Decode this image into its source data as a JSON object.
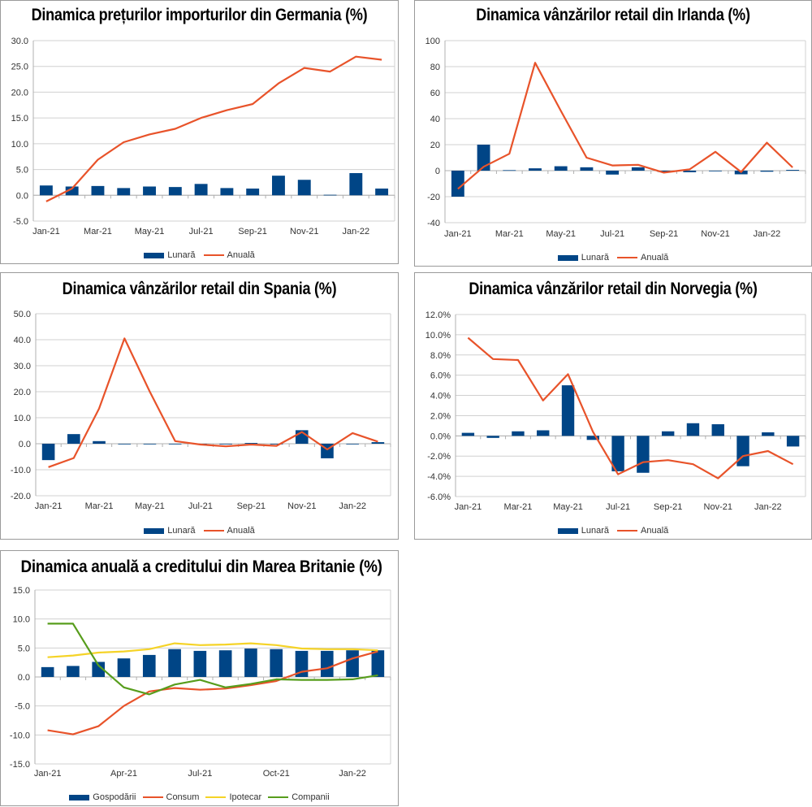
{
  "colors": {
    "bar": "#004586",
    "anuala": "#e8532a",
    "consum": "#e8532a",
    "ipotecar": "#f5d327",
    "companii": "#579d1c",
    "grid": "#d0d0d0",
    "axis": "#b0b0b0"
  },
  "chart_data": [
    {
      "id": "germania",
      "type": "bar+line",
      "title": "Dinamica prețurilor importurilor din Germania (%)",
      "categories": [
        "Jan-21",
        "Feb-21",
        "Mar-21",
        "Apr-21",
        "May-21",
        "Jun-21",
        "Jul-21",
        "Aug-21",
        "Sep-21",
        "Oct-21",
        "Nov-21",
        "Dec-21",
        "Jan-22",
        "Feb-22"
      ],
      "x_tick_labels": [
        "Jan-21",
        "Mar-21",
        "May-21",
        "Jul-21",
        "Sep-21",
        "Nov-21",
        "Jan-22"
      ],
      "ylim": [
        -5,
        30
      ],
      "yticks": [
        -5,
        0,
        5,
        10,
        15,
        20,
        25,
        30
      ],
      "ytick_labels": [
        "-5.0",
        "0.0",
        "5.0",
        "10.0",
        "15.0",
        "20.0",
        "25.0",
        "30.0"
      ],
      "grid": true,
      "legend": "bottom",
      "series": [
        {
          "name": "Lunară",
          "kind": "bar",
          "color_key": "bar",
          "values": [
            1.9,
            1.7,
            1.8,
            1.4,
            1.7,
            1.6,
            2.2,
            1.4,
            1.3,
            3.8,
            3.0,
            0.1,
            4.3,
            1.3
          ]
        },
        {
          "name": "Anuală",
          "kind": "line",
          "color_key": "anuala",
          "values": [
            -1.2,
            1.3,
            6.9,
            10.3,
            11.8,
            12.9,
            15.0,
            16.5,
            17.7,
            21.7,
            24.7,
            24.0,
            26.9,
            26.3
          ]
        }
      ]
    },
    {
      "id": "irlanda",
      "type": "bar+line",
      "title": "Dinamica vânzărilor retail din Irlanda (%)",
      "categories": [
        "Jan-21",
        "Feb-21",
        "Mar-21",
        "Apr-21",
        "May-21",
        "Jun-21",
        "Jul-21",
        "Aug-21",
        "Sep-21",
        "Oct-21",
        "Nov-21",
        "Dec-21",
        "Jan-22",
        "Feb-22"
      ],
      "x_tick_labels": [
        "Jan-21",
        "Mar-21",
        "May-21",
        "Jul-21",
        "Sep-21",
        "Nov-21",
        "Jan-22"
      ],
      "ylim": [
        -40,
        100
      ],
      "yticks": [
        -40,
        -20,
        0,
        20,
        40,
        60,
        80,
        100
      ],
      "ytick_labels": [
        "-40",
        "-20",
        "0",
        "20",
        "40",
        "60",
        "80",
        "100"
      ],
      "grid": true,
      "legend": "bottom",
      "series": [
        {
          "name": "Lunară",
          "kind": "bar",
          "color_key": "bar",
          "values": [
            -20.0,
            20.0,
            0.4,
            1.8,
            3.4,
            2.6,
            -3.0,
            2.6,
            -1.0,
            -1.2,
            0.0,
            -2.8,
            -0.8,
            0.6
          ]
        },
        {
          "name": "Anuală",
          "kind": "line",
          "color_key": "anuala",
          "values": [
            -14.0,
            3.0,
            13.0,
            83.0,
            46.0,
            10.0,
            4.0,
            4.5,
            -1.5,
            1.0,
            14.5,
            -1.0,
            21.5,
            2.5
          ]
        }
      ]
    },
    {
      "id": "spania",
      "type": "bar+line",
      "title": "Dinamica vânzărilor retail din Spania (%)",
      "categories": [
        "Jan-21",
        "Feb-21",
        "Mar-21",
        "Apr-21",
        "May-21",
        "Jun-21",
        "Jul-21",
        "Aug-21",
        "Sep-21",
        "Oct-21",
        "Nov-21",
        "Dec-21",
        "Jan-22",
        "Feb-22"
      ],
      "x_tick_labels": [
        "Jan-21",
        "Mar-21",
        "May-21",
        "Jul-21",
        "Sep-21",
        "Nov-21",
        "Jan-22"
      ],
      "ylim": [
        -20,
        50
      ],
      "yticks": [
        -20,
        -10,
        0,
        10,
        20,
        30,
        40,
        50
      ],
      "ytick_labels": [
        "-20.0",
        "-10.0",
        "0.0",
        "10.0",
        "20.0",
        "30.0",
        "40.0",
        "50.0"
      ],
      "grid": true,
      "legend": "bottom",
      "series": [
        {
          "name": "Lunară",
          "kind": "bar",
          "color_key": "bar",
          "values": [
            -6.3,
            3.7,
            1.0,
            -0.2,
            -0.1,
            0.0,
            0.0,
            0.0,
            0.3,
            0.0,
            5.2,
            -5.6,
            -0.2,
            0.6
          ]
        },
        {
          "name": "Anuală",
          "kind": "line",
          "color_key": "anuala",
          "values": [
            -9.0,
            -5.5,
            13.5,
            40.5,
            20.0,
            1.0,
            -0.3,
            -1.0,
            -0.3,
            -0.8,
            4.5,
            -2.2,
            4.1,
            0.8
          ]
        }
      ]
    },
    {
      "id": "norvegia",
      "type": "bar+line",
      "title": "Dinamica vânzărilor retail din Norvegia (%)",
      "categories": [
        "Jan-21",
        "Feb-21",
        "Mar-21",
        "Apr-21",
        "May-21",
        "Jun-21",
        "Jul-21",
        "Aug-21",
        "Sep-21",
        "Oct-21",
        "Nov-21",
        "Dec-21",
        "Jan-22",
        "Feb-22"
      ],
      "x_tick_labels": [
        "Jan-21",
        "Mar-21",
        "May-21",
        "Jul-21",
        "Sep-21",
        "Nov-21",
        "Jan-22"
      ],
      "ylim": [
        -6,
        12
      ],
      "yticks": [
        -6,
        -4,
        -2,
        0,
        2,
        4,
        6,
        8,
        10,
        12
      ],
      "ytick_labels": [
        "-6.0%",
        "-4.0%",
        "-2.0%",
        "0.0%",
        "2.0%",
        "4.0%",
        "6.0%",
        "8.0%",
        "10.0%",
        "12.0%"
      ],
      "grid": true,
      "legend": "bottom",
      "series": [
        {
          "name": "Lunară",
          "kind": "bar",
          "color_key": "bar",
          "values": [
            0.3,
            -0.2,
            0.45,
            0.55,
            5.0,
            -0.4,
            -3.5,
            -3.65,
            0.45,
            1.25,
            1.15,
            -3.0,
            0.35,
            -1.05
          ]
        },
        {
          "name": "Anuală",
          "kind": "line",
          "color_key": "anuala",
          "values": [
            9.7,
            7.6,
            7.5,
            3.5,
            6.1,
            0.4,
            -3.8,
            -2.6,
            -2.4,
            -2.8,
            -4.2,
            -2.0,
            -1.5,
            -2.8
          ]
        }
      ]
    },
    {
      "id": "marea-britanie",
      "type": "bar+line",
      "title": "Dinamica anuală a creditului din Marea Britanie (%)",
      "categories": [
        "Jan-21",
        "Feb-21",
        "Mar-21",
        "Apr-21",
        "May-21",
        "Jun-21",
        "Jul-21",
        "Aug-21",
        "Sep-21",
        "Oct-21",
        "Nov-21",
        "Dec-21",
        "Jan-22",
        "Feb-22"
      ],
      "x_tick_labels": [
        "Jan-21",
        "Apr-21",
        "Jul-21",
        "Oct-21",
        "Jan-22"
      ],
      "x_tick_step": 3,
      "ylim": [
        -15,
        15
      ],
      "yticks": [
        -15,
        -10,
        -5,
        0,
        5,
        10,
        15
      ],
      "ytick_labels": [
        "-15.0",
        "-10.0",
        "-5.0",
        "0.0",
        "5.0",
        "10.0",
        "15.0"
      ],
      "grid": true,
      "legend": "bottom",
      "series": [
        {
          "name": "Gospodării",
          "kind": "bar",
          "color_key": "bar",
          "values": [
            1.7,
            1.9,
            2.6,
            3.2,
            3.8,
            4.8,
            4.5,
            4.6,
            4.9,
            4.8,
            4.5,
            4.5,
            4.6,
            4.6
          ]
        },
        {
          "name": "Consum",
          "kind": "line",
          "color_key": "consum",
          "values": [
            -9.2,
            -9.9,
            -8.5,
            -5.0,
            -2.5,
            -1.9,
            -2.2,
            -2.0,
            -1.4,
            -0.7,
            0.9,
            1.5,
            3.2,
            4.4
          ]
        },
        {
          "name": "Ipotecar",
          "kind": "line",
          "color_key": "ipotecar",
          "values": [
            3.4,
            3.7,
            4.2,
            4.4,
            4.8,
            5.8,
            5.5,
            5.6,
            5.8,
            5.5,
            4.9,
            4.8,
            4.8,
            4.6
          ]
        },
        {
          "name": "Companii",
          "kind": "line",
          "color_key": "companii",
          "values": [
            9.2,
            9.2,
            2.0,
            -1.8,
            -3.0,
            -1.3,
            -0.5,
            -1.8,
            -1.2,
            -0.4,
            -0.5,
            -0.5,
            -0.4,
            0.3
          ]
        }
      ]
    }
  ]
}
